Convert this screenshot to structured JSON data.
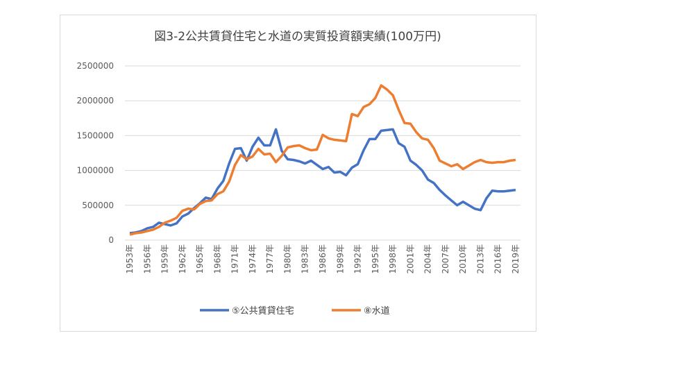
{
  "chart_data": {
    "type": "line",
    "title": "図3-2公共賃貸住宅と水道の実質投資額実績(100万円)",
    "categories": [
      "1953年",
      null,
      null,
      "1956年",
      null,
      null,
      "1959年",
      null,
      null,
      "1962年",
      null,
      null,
      "1965年",
      null,
      null,
      "1968年",
      null,
      null,
      "1971年",
      null,
      null,
      "1974年",
      null,
      null,
      "1977年",
      null,
      null,
      "1980年",
      null,
      null,
      "1983年",
      null,
      null,
      "1986年",
      null,
      null,
      "1989年",
      null,
      null,
      "1992年",
      null,
      null,
      "1995年",
      null,
      null,
      "1998年",
      null,
      null,
      "2001年",
      null,
      null,
      "2004年",
      null,
      null,
      "2007年",
      null,
      null,
      "2010年",
      null,
      null,
      "2013年",
      null,
      null,
      "2016年",
      null,
      null,
      "2019年"
    ],
    "series": [
      {
        "name": "⑤公共賃貸住宅",
        "color": "#4472c4",
        "values": [
          100000,
          110000,
          130000,
          170000,
          190000,
          250000,
          230000,
          210000,
          240000,
          340000,
          380000,
          460000,
          530000,
          610000,
          590000,
          740000,
          850000,
          1100000,
          1310000,
          1320000,
          1140000,
          1340000,
          1470000,
          1360000,
          1360000,
          1590000,
          1280000,
          1160000,
          1150000,
          1130000,
          1100000,
          1140000,
          1080000,
          1020000,
          1050000,
          970000,
          980000,
          930000,
          1040000,
          1090000,
          1290000,
          1450000,
          1450000,
          1570000,
          1580000,
          1590000,
          1390000,
          1340000,
          1140000,
          1080000,
          1000000,
          870000,
          820000,
          720000,
          640000,
          570000,
          500000,
          550000,
          500000,
          450000,
          430000,
          600000,
          710000,
          700000,
          700000,
          710000,
          720000
        ]
      },
      {
        "name": "⑧水道",
        "color": "#ed7d31",
        "values": [
          80000,
          100000,
          110000,
          130000,
          150000,
          190000,
          250000,
          280000,
          320000,
          420000,
          450000,
          440000,
          520000,
          560000,
          570000,
          660000,
          700000,
          840000,
          1080000,
          1220000,
          1160000,
          1200000,
          1310000,
          1230000,
          1240000,
          1120000,
          1210000,
          1330000,
          1350000,
          1360000,
          1320000,
          1290000,
          1300000,
          1510000,
          1460000,
          1440000,
          1430000,
          1420000,
          1810000,
          1780000,
          1910000,
          1950000,
          2040000,
          2220000,
          2160000,
          2080000,
          1870000,
          1680000,
          1670000,
          1550000,
          1460000,
          1440000,
          1320000,
          1140000,
          1100000,
          1060000,
          1090000,
          1020000,
          1070000,
          1120000,
          1150000,
          1120000,
          1110000,
          1120000,
          1120000,
          1140000,
          1150000
        ]
      }
    ],
    "ylim": [
      0,
      2500000
    ],
    "yticks": [
      0,
      500000,
      1000000,
      1500000,
      2000000,
      2500000
    ],
    "grid": true,
    "legend": "bottom"
  }
}
